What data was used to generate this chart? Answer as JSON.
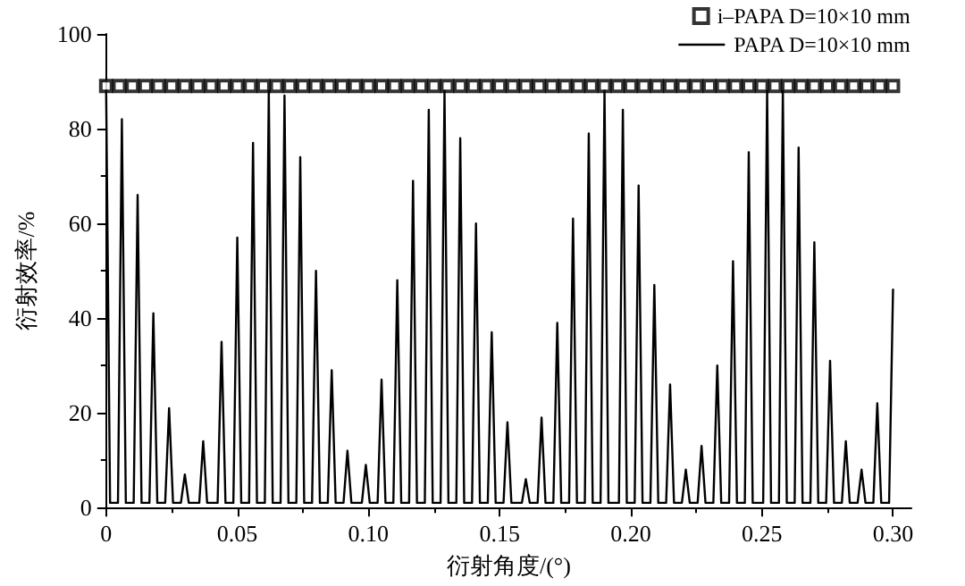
{
  "chart_data": {
    "type": "line",
    "xlabel": "衍射角度/(°)",
    "ylabel": "衍射效率/%",
    "xlim": [
      0,
      0.307
    ],
    "xticks": [
      0,
      0.05,
      {
        "value": 0.1,
        "label": "0.10"
      },
      0.15,
      {
        "value": 0.2,
        "label": "0.20"
      },
      0.25,
      {
        "value": 0.3,
        "label": "0.30"
      }
    ],
    "ylim": [
      0,
      100
    ],
    "yticks": [
      0,
      20,
      40,
      60,
      80,
      100
    ],
    "grid": false,
    "legend": "top right",
    "line_style": "solid",
    "series": [
      {
        "name": "i–PAPA D=10×10 mm",
        "type": "scatter",
        "marker": "square",
        "color": "#000000",
        "x": [
          0,
          0.005,
          0.01,
          0.015,
          0.02,
          0.025,
          0.03,
          0.035,
          0.04,
          0.045,
          0.05,
          0.055,
          0.06,
          0.065,
          0.07,
          0.075,
          0.08,
          0.085,
          0.09,
          0.095,
          0.1,
          0.105,
          0.11,
          0.115,
          0.12,
          0.125,
          0.13,
          0.135,
          0.14,
          0.145,
          0.15,
          0.155,
          0.16,
          0.165,
          0.17,
          0.175,
          0.18,
          0.185,
          0.19,
          0.195,
          0.2,
          0.205,
          0.21,
          0.215,
          0.22,
          0.225,
          0.23,
          0.235,
          0.24,
          0.245,
          0.25,
          0.255,
          0.26,
          0.265,
          0.27,
          0.275,
          0.28,
          0.285,
          0.29,
          0.295,
          0.3
        ],
        "values": [
          89,
          89,
          89,
          89,
          89,
          89,
          89,
          89,
          89,
          89,
          89,
          89,
          89,
          89,
          89,
          89,
          89,
          89,
          89,
          89,
          89,
          89,
          89,
          89,
          89,
          89,
          89,
          89,
          89,
          89,
          89,
          89,
          89,
          89,
          89,
          89,
          89,
          89,
          89,
          89,
          89,
          89,
          89,
          89,
          89,
          89,
          89,
          89,
          89,
          89,
          89,
          89,
          89,
          89,
          89,
          89,
          89,
          89,
          89,
          89,
          89
        ]
      },
      {
        "name": "PAPA D=10×10 mm",
        "marker": "none",
        "color": "#000000",
        "x": [
          0,
          0.0015,
          0.0045,
          0.006,
          0.0075,
          0.0105,
          0.012,
          0.0135,
          0.0165,
          0.018,
          0.0195,
          0.0225,
          0.024,
          0.0255,
          0.0285,
          0.03,
          0.0315,
          0.0355,
          0.037,
          0.0385,
          0.0425,
          0.044,
          0.0455,
          0.0485,
          0.05,
          0.0515,
          0.0545,
          0.056,
          0.0575,
          0.0605,
          0.062,
          0.0635,
          0.0665,
          0.068,
          0.0695,
          0.0725,
          0.074,
          0.0755,
          0.0785,
          0.08,
          0.0815,
          0.0845,
          0.086,
          0.0875,
          0.0905,
          0.092,
          0.0935,
          0.0975,
          0.099,
          0.1005,
          0.1035,
          0.105,
          0.1065,
          0.1095,
          0.111,
          0.1125,
          0.1155,
          0.117,
          0.1185,
          0.1215,
          0.123,
          0.1245,
          0.1275,
          0.129,
          0.1305,
          0.1335,
          0.135,
          0.1365,
          0.1395,
          0.141,
          0.1425,
          0.1455,
          0.147,
          0.1485,
          0.1515,
          0.153,
          0.1545,
          0.1585,
          0.16,
          0.1615,
          0.1645,
          0.166,
          0.1675,
          0.1705,
          0.172,
          0.1735,
          0.1765,
          0.178,
          0.1795,
          0.1825,
          0.184,
          0.1855,
          0.1885,
          0.19,
          0.1915,
          0.1955,
          0.197,
          0.1985,
          0.2015,
          0.203,
          0.2045,
          0.2075,
          0.209,
          0.2105,
          0.2135,
          0.215,
          0.2165,
          0.2195,
          0.221,
          0.2225,
          0.2255,
          0.227,
          0.2285,
          0.2315,
          0.233,
          0.2345,
          0.2375,
          0.239,
          0.2405,
          0.2435,
          0.245,
          0.2465,
          0.2505,
          0.252,
          0.2535,
          0.2565,
          0.258,
          0.2595,
          0.2625,
          0.264,
          0.2655,
          0.2685,
          0.27,
          0.2715,
          0.2745,
          0.276,
          0.2775,
          0.2805,
          0.282,
          0.2835,
          0.2865,
          0.288,
          0.2895,
          0.2925,
          0.294,
          0.2955,
          0.2985,
          0.3
        ],
        "values": [
          88,
          1,
          1,
          82,
          1,
          1,
          66,
          1,
          1,
          41,
          1,
          1,
          21,
          1,
          1,
          7,
          1,
          1,
          14,
          1,
          1,
          35,
          1,
          1,
          57,
          1,
          1,
          77,
          1,
          1,
          88,
          1,
          1,
          87,
          1,
          1,
          74,
          1,
          1,
          50,
          1,
          1,
          29,
          1,
          1,
          12,
          1,
          1,
          9,
          1,
          1,
          27,
          1,
          1,
          48,
          1,
          1,
          69,
          1,
          1,
          84,
          1,
          1,
          88,
          1,
          1,
          78,
          1,
          1,
          60,
          1,
          1,
          37,
          1,
          1,
          18,
          1,
          1,
          6,
          1,
          1,
          19,
          1,
          1,
          39,
          1,
          1,
          61,
          1,
          1,
          79,
          1,
          1,
          88,
          1,
          1,
          84,
          1,
          1,
          68,
          1,
          1,
          47,
          1,
          1,
          26,
          1,
          1,
          8,
          1,
          1,
          13,
          1,
          1,
          30,
          1,
          1,
          52,
          1,
          1,
          75,
          1,
          1,
          88,
          1,
          1,
          88,
          1,
          1,
          76,
          1,
          1,
          56,
          1,
          1,
          31,
          1,
          1,
          14,
          1,
          1,
          8,
          1,
          1,
          22,
          1,
          1,
          46
        ]
      }
    ]
  }
}
